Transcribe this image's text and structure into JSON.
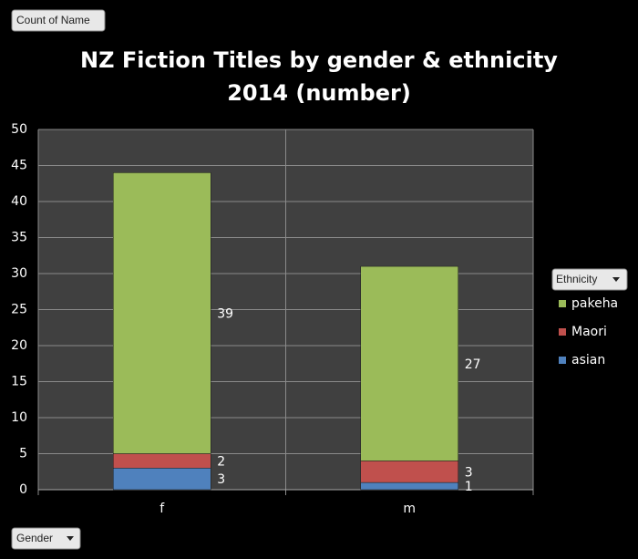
{
  "chart_data": {
    "type": "stacked_bar",
    "title": [
      "NZ Fiction Titles by gender & ethnicity",
      "2014 (number)"
    ],
    "value_field": "Count of Name",
    "x_field": "Gender",
    "legend_title": "Ethnicity",
    "categories": [
      "f",
      "m"
    ],
    "series": [
      {
        "name": "asian",
        "color": "#4f81bd",
        "values": [
          3,
          1
        ]
      },
      {
        "name": "Maori",
        "color": "#c0504d",
        "values": [
          2,
          3
        ]
      },
      {
        "name": "pakeha",
        "color": "#9bbb59",
        "values": [
          39,
          27
        ]
      }
    ],
    "ylim": [
      0,
      50
    ],
    "yticks": [
      0,
      5,
      10,
      15,
      20,
      25,
      30,
      35,
      40,
      45,
      50
    ],
    "grid": true,
    "legend": "right"
  }
}
